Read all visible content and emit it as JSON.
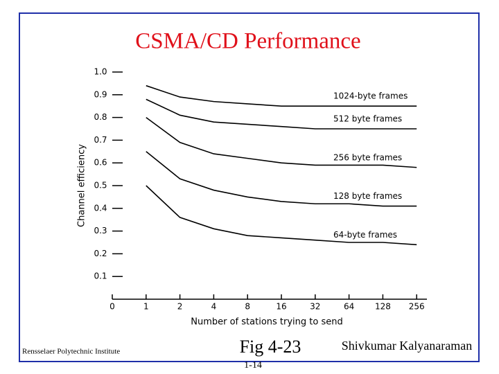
{
  "chart_data": {
    "type": "line",
    "title": "CSMA/CD Performance",
    "x_label": "Number of stations trying to send",
    "y_label": "Channel efficiency",
    "categories": [
      "0",
      "1",
      "2",
      "4",
      "8",
      "16",
      "32",
      "64",
      "128",
      "256"
    ],
    "series": [
      {
        "name": "1024-byte frames",
        "color": "#000000",
        "values": [
          null,
          0.94,
          0.89,
          0.87,
          0.86,
          0.85,
          0.85,
          0.85,
          0.85,
          0.85
        ]
      },
      {
        "name": "512 byte frames",
        "color": "#000000",
        "values": [
          null,
          0.88,
          0.81,
          0.78,
          0.77,
          0.76,
          0.75,
          0.75,
          0.75,
          0.75
        ]
      },
      {
        "name": "256 byte frames",
        "color": "#000000",
        "values": [
          null,
          0.8,
          0.69,
          0.64,
          0.62,
          0.6,
          0.59,
          0.59,
          0.59,
          0.58
        ]
      },
      {
        "name": "128 byte frames",
        "color": "#000000",
        "values": [
          null,
          0.65,
          0.53,
          0.48,
          0.45,
          0.43,
          0.42,
          0.42,
          0.41,
          0.41
        ]
      },
      {
        "name": "64-byte frames",
        "color": "#000000",
        "values": [
          null,
          0.5,
          0.36,
          0.31,
          0.28,
          0.27,
          0.26,
          0.25,
          0.25,
          0.24
        ]
      }
    ],
    "ylim": [
      0,
      1
    ],
    "yticks": [
      {
        "value": 1,
        "label": "1.0"
      },
      0.9,
      0.8,
      0.7,
      0.6,
      0.5,
      0.4,
      0.3,
      0.2,
      0.1
    ]
  },
  "footer": {
    "institute": "Rensselaer Polytechnic Institute",
    "figure": "Fig 4-23",
    "author": "Shivkumar Kalyanaraman",
    "page": "1-14"
  }
}
